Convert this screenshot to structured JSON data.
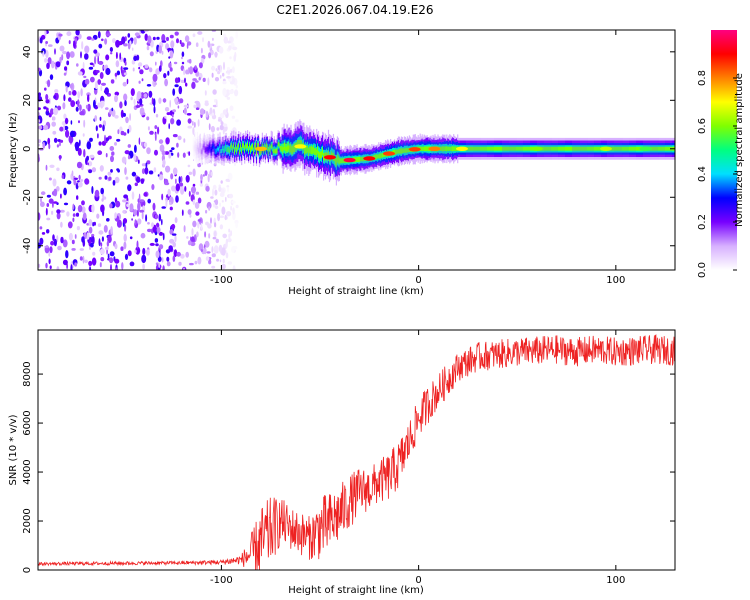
{
  "title": "C2E1.2026.067.04.19.E26",
  "chart_data": [
    {
      "type": "heatmap",
      "xlabel": "Height of straight line (km)",
      "ylabel": "Frequency (Hz)",
      "xlim": [
        -193,
        130
      ],
      "ylim": [
        -50,
        49
      ],
      "xticks": [
        -100,
        0,
        100
      ],
      "yticks": [
        -40,
        -20,
        0,
        20,
        40
      ],
      "colorbar": {
        "label": "Normalized spectral amplitude",
        "range": [
          0,
          1
        ],
        "ticks": [
          "0.0",
          "0.2",
          "0.4",
          "0.6",
          "0.8"
        ],
        "colors": [
          "#ffffff",
          "#d7b0ff",
          "#7700ff",
          "#0000ff",
          "#00dfff",
          "#00ff80",
          "#80ff00",
          "#ffff00",
          "#ff8000",
          "#ff0000",
          "#ff0080"
        ]
      },
      "regions": [
        {
          "name": "noise",
          "x_range": [
            -193,
            -92
          ],
          "freq_range": [
            -50,
            49
          ],
          "amplitude": 0.15
        },
        {
          "name": "signal-band",
          "x_range": [
            -115,
            130
          ],
          "center_freq": [
            [
              -115,
              0
            ],
            [
              -80,
              0
            ],
            [
              -60,
              1
            ],
            [
              -40,
              -5
            ],
            [
              -25,
              -4
            ],
            [
              -10,
              -1
            ],
            [
              0,
              0
            ],
            [
              20,
              0
            ],
            [
              130,
              0
            ]
          ],
          "half_width_hz": 4,
          "peak_amplitude": 0.95
        }
      ]
    },
    {
      "type": "line",
      "xlabel": "Height of straight line (km)",
      "ylabel": "SNR (10 * v/v)",
      "xlim": [
        -193,
        130
      ],
      "ylim": [
        0,
        9800
      ],
      "xticks": [
        -100,
        0,
        100
      ],
      "yticks": [
        0,
        2000,
        4000,
        6000,
        8000
      ],
      "series": [
        {
          "name": "SNR",
          "color": "#ee2222",
          "x": [
            -193,
            -180,
            -160,
            -140,
            -120,
            -100,
            -90,
            -85,
            -80,
            -75,
            -70,
            -65,
            -60,
            -55,
            -50,
            -45,
            -40,
            -35,
            -30,
            -25,
            -20,
            -15,
            -10,
            -5,
            0,
            5,
            10,
            15,
            20,
            25,
            30,
            40,
            50,
            60,
            70,
            80,
            90,
            100,
            110,
            120,
            130
          ],
          "values": [
            250,
            260,
            270,
            280,
            290,
            320,
            420,
            650,
            1100,
            1600,
            2000,
            1700,
            1500,
            1300,
            1700,
            1900,
            2300,
            2800,
            3200,
            3300,
            3600,
            3800,
            4300,
            5200,
            6200,
            6800,
            7300,
            7800,
            8300,
            8500,
            8700,
            8800,
            8900,
            8950,
            9000,
            8900,
            9000,
            8900,
            8950,
            9000,
            8950
          ],
          "noise_amplitude": [
            60,
            70,
            70,
            70,
            70,
            100,
            200,
            800,
            1500,
            1400,
            1000,
            900,
            900,
            900,
            1300,
            1300,
            1200,
            1100,
            1000,
            900,
            900,
            1000,
            1000,
            900,
            800,
            800,
            700,
            700,
            600,
            600,
            600,
            600,
            600,
            600,
            600,
            600,
            600,
            600,
            600,
            600,
            600
          ]
        }
      ]
    }
  ]
}
